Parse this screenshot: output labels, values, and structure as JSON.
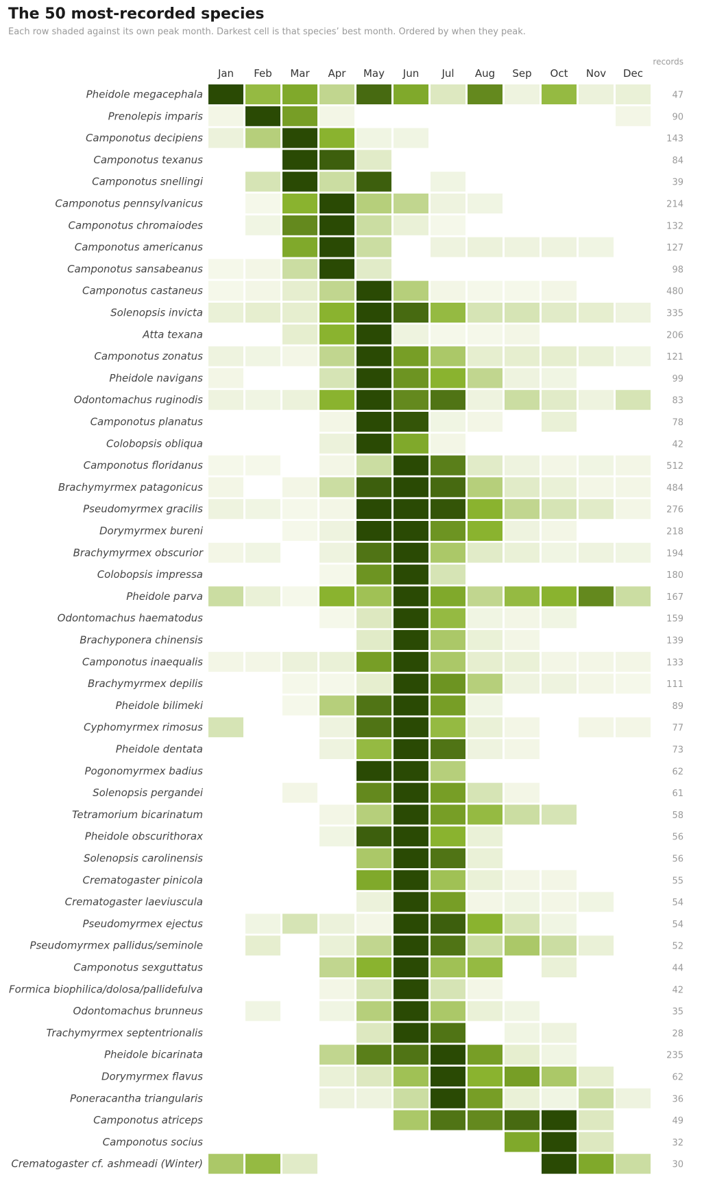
{
  "chart_data": {
    "type": "heatmap",
    "title": "The 50 most-recorded species",
    "subtitle": "Each row shaded against its own peak month. Darkest cell is that species’ best month. Ordered by when they peak.",
    "months": [
      "Jan",
      "Feb",
      "Mar",
      "Apr",
      "May",
      "Jun",
      "Jul",
      "Aug",
      "Sep",
      "Oct",
      "Nov",
      "Dec"
    ],
    "count_header": "records",
    "color_scale": {
      "low": "#f7f9ee",
      "high": "#2a4a04",
      "empty": "#ffffff"
    },
    "rows": [
      {
        "species": "Pheidole megacephala",
        "records": "47",
        "values": [
          1.0,
          0.45,
          0.55,
          0.25,
          0.85,
          0.55,
          0.12,
          0.7,
          0.04,
          0.45,
          0.05,
          0.06
        ]
      },
      {
        "species": "Prenolepis imparis",
        "records": "90",
        "values": [
          0.02,
          1.0,
          0.6,
          0.02,
          0,
          0,
          0,
          0,
          0,
          0,
          0,
          0.02
        ]
      },
      {
        "species": "Camponotus decipiens",
        "records": "143",
        "values": [
          0.05,
          0.3,
          1.0,
          0.5,
          0.03,
          0.03,
          0,
          0,
          0,
          0,
          0,
          0
        ]
      },
      {
        "species": "Camponotus texanus",
        "records": "84",
        "values": [
          0,
          0,
          1.0,
          0.9,
          0.1,
          0,
          0,
          0,
          0,
          0,
          0,
          0
        ]
      },
      {
        "species": "Camponotus snellingi",
        "records": "39",
        "values": [
          0,
          0.15,
          1.0,
          0.2,
          0.9,
          0,
          0.03,
          0,
          0,
          0,
          0,
          0
        ]
      },
      {
        "species": "Camponotus pennsylvanicus",
        "records": "214",
        "values": [
          0,
          0.01,
          0.5,
          1.0,
          0.3,
          0.25,
          0.04,
          0.03,
          0,
          0,
          0,
          0
        ]
      },
      {
        "species": "Camponotus chromaiodes",
        "records": "132",
        "values": [
          0,
          0.03,
          0.7,
          1.0,
          0.2,
          0.06,
          0.01,
          0,
          0,
          0,
          0,
          0
        ]
      },
      {
        "species": "Camponotus americanus",
        "records": "127",
        "values": [
          0,
          0,
          0.55,
          1.0,
          0.2,
          0,
          0.04,
          0.05,
          0.04,
          0.04,
          0.03,
          0
        ]
      },
      {
        "species": "Camponotus sansabeanus",
        "records": "98",
        "values": [
          0.01,
          0.02,
          0.2,
          1.0,
          0.1,
          0,
          0,
          0,
          0,
          0,
          0,
          0
        ]
      },
      {
        "species": "Camponotus castaneus",
        "records": "480",
        "values": [
          0.01,
          0.02,
          0.08,
          0.25,
          1.0,
          0.3,
          0.02,
          0.01,
          0.01,
          0.02,
          0,
          0
        ]
      },
      {
        "species": "Solenopsis invicta",
        "records": "335",
        "values": [
          0.06,
          0.08,
          0.08,
          0.5,
          1.0,
          0.85,
          0.45,
          0.15,
          0.15,
          0.1,
          0.08,
          0.04
        ]
      },
      {
        "species": "Atta texana",
        "records": "206",
        "values": [
          0,
          0,
          0.08,
          0.5,
          1.0,
          0.04,
          0.01,
          0.01,
          0.02,
          0,
          0,
          0
        ]
      },
      {
        "species": "Camponotus zonatus",
        "records": "121",
        "values": [
          0.04,
          0.03,
          0.02,
          0.25,
          1.0,
          0.6,
          0.35,
          0.08,
          0.08,
          0.08,
          0.06,
          0.03
        ]
      },
      {
        "species": "Pheidole navigans",
        "records": "99",
        "values": [
          0.02,
          0,
          0,
          0.15,
          1.0,
          0.65,
          0.5,
          0.25,
          0.04,
          0.03,
          0,
          0
        ]
      },
      {
        "species": "Odontomachus ruginodis",
        "records": "83",
        "values": [
          0.04,
          0.03,
          0.05,
          0.5,
          1.0,
          0.7,
          0.8,
          0.04,
          0.2,
          0.1,
          0.04,
          0.15
        ]
      },
      {
        "species": "Camponotus planatus",
        "records": "78",
        "values": [
          0,
          0,
          0,
          0.02,
          1.0,
          0.95,
          0.03,
          0.02,
          0,
          0.06,
          0,
          0
        ]
      },
      {
        "species": "Colobopsis obliqua",
        "records": "42",
        "values": [
          0,
          0,
          0,
          0.05,
          1.0,
          0.55,
          0.02,
          0,
          0,
          0,
          0,
          0
        ]
      },
      {
        "species": "Camponotus floridanus",
        "records": "512",
        "values": [
          0.01,
          0.01,
          0,
          0.02,
          0.2,
          1.0,
          0.75,
          0.1,
          0.04,
          0.02,
          0.03,
          0.02
        ]
      },
      {
        "species": "Brachymyrmex patagonicus",
        "records": "484",
        "values": [
          0.02,
          0,
          0.02,
          0.2,
          0.9,
          1.0,
          0.85,
          0.3,
          0.1,
          0.06,
          0.02,
          0.02
        ]
      },
      {
        "species": "Pseudomyrmex gracilis",
        "records": "276",
        "values": [
          0.04,
          0.03,
          0.01,
          0.02,
          1.0,
          1.0,
          0.95,
          0.5,
          0.25,
          0.15,
          0.1,
          0.02
        ]
      },
      {
        "species": "Dorymyrmex bureni",
        "records": "218",
        "values": [
          0,
          0,
          0.01,
          0.04,
          1.0,
          1.0,
          0.65,
          0.5,
          0.04,
          0.02,
          0,
          0
        ]
      },
      {
        "species": "Brachymyrmex obscurior",
        "records": "194",
        "values": [
          0.02,
          0.03,
          0,
          0.04,
          0.8,
          1.0,
          0.35,
          0.1,
          0.06,
          0.03,
          0.04,
          0.03
        ]
      },
      {
        "species": "Colobopsis impressa",
        "records": "180",
        "values": [
          0,
          0,
          0,
          0.01,
          0.65,
          1.0,
          0.15,
          0,
          0,
          0,
          0,
          0
        ]
      },
      {
        "species": "Pheidole parva",
        "records": "167",
        "values": [
          0.2,
          0.06,
          0.01,
          0.5,
          0.4,
          1.0,
          0.55,
          0.25,
          0.45,
          0.5,
          0.7,
          0.2
        ]
      },
      {
        "species": "Odontomachus haematodus",
        "records": "159",
        "values": [
          0,
          0,
          0,
          0.01,
          0.12,
          1.0,
          0.45,
          0.03,
          0.02,
          0.03,
          0,
          0
        ]
      },
      {
        "species": "Brachyponera chinensis",
        "records": "139",
        "values": [
          0,
          0,
          0,
          0,
          0.1,
          1.0,
          0.35,
          0.06,
          0.02,
          0,
          0,
          0
        ]
      },
      {
        "species": "Camponotus inaequalis",
        "records": "133",
        "values": [
          0.02,
          0.02,
          0.05,
          0.06,
          0.6,
          1.0,
          0.35,
          0.08,
          0.06,
          0.02,
          0.02,
          0.02
        ]
      },
      {
        "species": "Brachymyrmex depilis",
        "records": "111",
        "values": [
          0,
          0,
          0.01,
          0.01,
          0.08,
          1.0,
          0.65,
          0.3,
          0.04,
          0.04,
          0.02,
          0.01
        ]
      },
      {
        "species": "Pheidole bilimeki",
        "records": "89",
        "values": [
          0,
          0,
          0.01,
          0.3,
          0.8,
          1.0,
          0.6,
          0.03,
          0,
          0,
          0,
          0
        ]
      },
      {
        "species": "Cyphomyrmex rimosus",
        "records": "77",
        "values": [
          0.15,
          0,
          0,
          0.04,
          0.8,
          1.0,
          0.45,
          0.06,
          0.02,
          0,
          0.02,
          0.02
        ]
      },
      {
        "species": "Pheidole dentata",
        "records": "73",
        "values": [
          0,
          0,
          0,
          0.04,
          0.45,
          1.0,
          0.8,
          0.04,
          0.02,
          0,
          0,
          0
        ]
      },
      {
        "species": "Pogonomyrmex badius",
        "records": "62",
        "values": [
          0,
          0,
          0,
          0,
          1.0,
          1.0,
          0.3,
          0,
          0,
          0,
          0,
          0
        ]
      },
      {
        "species": "Solenopsis pergandei",
        "records": "61",
        "values": [
          0,
          0,
          0.02,
          0,
          0.7,
          1.0,
          0.6,
          0.15,
          0.02,
          0,
          0,
          0
        ]
      },
      {
        "species": "Tetramorium bicarinatum",
        "records": "58",
        "values": [
          0,
          0,
          0,
          0.02,
          0.3,
          1.0,
          0.6,
          0.45,
          0.2,
          0.15,
          0,
          0
        ]
      },
      {
        "species": "Pheidole obscurithorax",
        "records": "56",
        "values": [
          0,
          0,
          0,
          0.03,
          0.9,
          1.0,
          0.5,
          0.06,
          0,
          0,
          0,
          0
        ]
      },
      {
        "species": "Solenopsis carolinensis",
        "records": "56",
        "values": [
          0,
          0,
          0,
          0,
          0.35,
          1.0,
          0.8,
          0.06,
          0,
          0,
          0,
          0
        ]
      },
      {
        "species": "Crematogaster pinicola",
        "records": "55",
        "values": [
          0,
          0,
          0,
          0,
          0.55,
          1.0,
          0.4,
          0.06,
          0.02,
          0.02,
          0,
          0
        ]
      },
      {
        "species": "Crematogaster laeviuscula",
        "records": "54",
        "values": [
          0,
          0,
          0,
          0,
          0.05,
          1.0,
          0.6,
          0.02,
          0.03,
          0.02,
          0.03,
          0
        ]
      },
      {
        "species": "Pseudomyrmex ejectus",
        "records": "54",
        "values": [
          0,
          0.03,
          0.15,
          0.05,
          0.02,
          1.0,
          0.9,
          0.5,
          0.15,
          0.03,
          0,
          0
        ]
      },
      {
        "species": "Pseudomyrmex pallidus/seminole",
        "records": "52",
        "values": [
          0,
          0.08,
          0,
          0.06,
          0.25,
          1.0,
          0.8,
          0.2,
          0.35,
          0.2,
          0.06,
          0
        ]
      },
      {
        "species": "Camponotus sexguttatus",
        "records": "44",
        "values": [
          0,
          0,
          0,
          0.25,
          0.5,
          1.0,
          0.4,
          0.45,
          0,
          0.06,
          0,
          0
        ]
      },
      {
        "species": "Formica biophilica/dolosa/pallidefulva",
        "records": "42",
        "values": [
          0,
          0,
          0,
          0.02,
          0.15,
          1.0,
          0.15,
          0.02,
          0,
          0,
          0,
          0
        ]
      },
      {
        "species": "Odontomachus brunneus",
        "records": "35",
        "values": [
          0,
          0.03,
          0,
          0.03,
          0.3,
          1.0,
          0.35,
          0.06,
          0.03,
          0,
          0,
          0
        ]
      },
      {
        "species": "Trachymyrmex septentrionalis",
        "records": "28",
        "values": [
          0,
          0,
          0,
          0,
          0.12,
          1.0,
          0.8,
          0,
          0.03,
          0.04,
          0,
          0
        ]
      },
      {
        "species": "Pheidole bicarinata",
        "records": "235",
        "values": [
          0,
          0,
          0,
          0.25,
          0.75,
          0.8,
          1.0,
          0.6,
          0.08,
          0.03,
          0,
          0
        ]
      },
      {
        "species": "Dorymyrmex flavus",
        "records": "62",
        "values": [
          0,
          0,
          0,
          0.06,
          0.12,
          0.4,
          1.0,
          0.5,
          0.6,
          0.35,
          0.08,
          0
        ]
      },
      {
        "species": "Poneracantha triangularis",
        "records": "36",
        "values": [
          0,
          0,
          0,
          0.04,
          0.04,
          0.2,
          1.0,
          0.6,
          0.06,
          0.03,
          0.2,
          0.04
        ]
      },
      {
        "species": "Camponotus atriceps",
        "records": "49",
        "values": [
          0,
          0,
          0,
          0,
          0,
          0.35,
          0.8,
          0.7,
          0.85,
          1.0,
          0.12,
          0
        ]
      },
      {
        "species": "Camponotus socius",
        "records": "32",
        "values": [
          0,
          0,
          0,
          0,
          0,
          0,
          0,
          0,
          0.55,
          1.0,
          0.12,
          0
        ]
      },
      {
        "species": "Crematogaster cf. ashmeadi (Winter)",
        "records": "30",
        "values": [
          0.35,
          0.45,
          0.1,
          0,
          0,
          0,
          0,
          0,
          0,
          1.0,
          0.55,
          0.2
        ]
      }
    ]
  }
}
